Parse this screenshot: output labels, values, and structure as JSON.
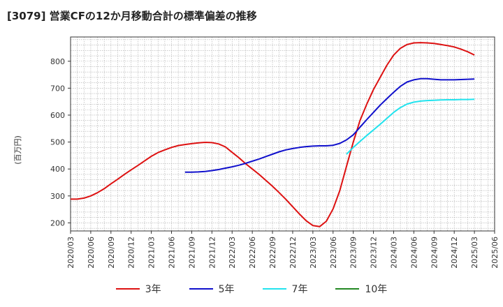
{
  "chart_data": {
    "type": "line",
    "title": "[3079]  営業CFの12か月移動合計の標準偏差の推移",
    "ylabel": "(百万円)",
    "ylim": [
      170,
      890
    ],
    "yticks": [
      200,
      300,
      400,
      500,
      600,
      700,
      800
    ],
    "xticks": [
      "2020/03",
      "2020/06",
      "2020/09",
      "2020/12",
      "2021/03",
      "2021/06",
      "2021/09",
      "2021/12",
      "2022/03",
      "2022/06",
      "2022/09",
      "2022/12",
      "2023/03",
      "2023/06",
      "2023/09",
      "2023/12",
      "2024/03",
      "2024/06",
      "2024/09",
      "2024/12",
      "2025/03",
      "2025/06"
    ],
    "grid": true,
    "legend_position": "bottom",
    "series": [
      {
        "name": "3年",
        "color": "#dd1111",
        "x": [
          "2020/03",
          "2020/04",
          "2020/05",
          "2020/06",
          "2020/07",
          "2020/08",
          "2020/09",
          "2020/10",
          "2020/11",
          "2020/12",
          "2021/01",
          "2021/02",
          "2021/03",
          "2021/04",
          "2021/05",
          "2021/06",
          "2021/07",
          "2021/08",
          "2021/09",
          "2021/10",
          "2021/11",
          "2021/12",
          "2022/01",
          "2022/02",
          "2022/03",
          "2022/04",
          "2022/05",
          "2022/06",
          "2022/07",
          "2022/08",
          "2022/09",
          "2022/10",
          "2022/11",
          "2022/12",
          "2023/01",
          "2023/02",
          "2023/03",
          "2023/04",
          "2023/05",
          "2023/06",
          "2023/07",
          "2023/08",
          "2023/09",
          "2023/10",
          "2023/11",
          "2023/12",
          "2024/01",
          "2024/02",
          "2024/03",
          "2024/04",
          "2024/05",
          "2024/06",
          "2024/07",
          "2024/08",
          "2024/09",
          "2024/10",
          "2024/11",
          "2024/12",
          "2025/01",
          "2025/02",
          "2025/03"
        ],
        "values": [
          288,
          288,
          292,
          300,
          312,
          327,
          345,
          362,
          380,
          397,
          413,
          430,
          447,
          461,
          471,
          480,
          487,
          491,
          494,
          497,
          499,
          498,
          493,
          482,
          462,
          442,
          420,
          400,
          380,
          358,
          336,
          312,
          287,
          260,
          233,
          208,
          190,
          186,
          206,
          252,
          320,
          410,
          500,
          580,
          640,
          695,
          740,
          785,
          823,
          848,
          862,
          868,
          869,
          868,
          866,
          862,
          858,
          853,
          845,
          835,
          823
        ]
      },
      {
        "name": "5年",
        "color": "#1010cc",
        "x": [
          "2021/08",
          "2021/09",
          "2021/10",
          "2021/11",
          "2021/12",
          "2022/01",
          "2022/02",
          "2022/03",
          "2022/04",
          "2022/05",
          "2022/06",
          "2022/07",
          "2022/08",
          "2022/09",
          "2022/10",
          "2022/11",
          "2022/12",
          "2023/01",
          "2023/02",
          "2023/03",
          "2023/04",
          "2023/05",
          "2023/06",
          "2023/07",
          "2023/08",
          "2023/09",
          "2023/10",
          "2023/11",
          "2023/12",
          "2024/01",
          "2024/02",
          "2024/03",
          "2024/04",
          "2024/05",
          "2024/06",
          "2024/07",
          "2024/08",
          "2024/09",
          "2024/10",
          "2024/11",
          "2024/12",
          "2025/01",
          "2025/02",
          "2025/03"
        ],
        "values": [
          388,
          388,
          389,
          391,
          394,
          398,
          403,
          408,
          414,
          421,
          429,
          437,
          446,
          455,
          464,
          471,
          476,
          480,
          483,
          485,
          486,
          486,
          488,
          495,
          508,
          527,
          555,
          583,
          610,
          637,
          661,
          685,
          707,
          723,
          731,
          735,
          735,
          733,
          731,
          731,
          731,
          732,
          733,
          734
        ]
      },
      {
        "name": "7年",
        "color": "#22e3ee",
        "x": [
          "2023/08",
          "2023/09",
          "2023/10",
          "2023/11",
          "2023/12",
          "2024/01",
          "2024/02",
          "2024/03",
          "2024/04",
          "2024/05",
          "2024/06",
          "2024/07",
          "2024/08",
          "2024/09",
          "2024/10",
          "2024/11",
          "2024/12",
          "2025/01",
          "2025/02",
          "2025/03"
        ],
        "values": [
          455,
          480,
          502,
          524,
          545,
          566,
          588,
          610,
          628,
          641,
          648,
          652,
          654,
          655,
          656,
          657,
          657,
          658,
          658,
          659
        ]
      },
      {
        "name": "10年",
        "color": "#228822",
        "x": [],
        "values": []
      }
    ]
  }
}
